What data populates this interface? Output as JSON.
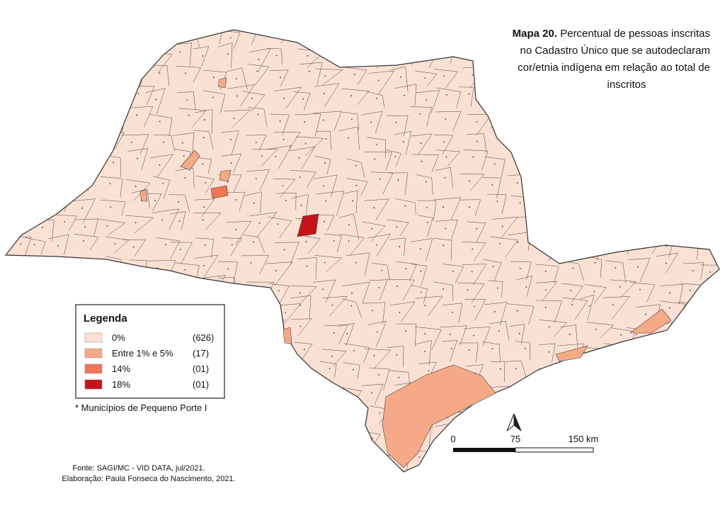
{
  "title": {
    "label": "Mapa 20.",
    "lines": [
      "Percentual de pessoas inscritas",
      "no Cadastro Único que se autodeclaram",
      "cor/etnia indígena em relação ao total de",
      "inscritos"
    ]
  },
  "legend": {
    "title": "Legenda",
    "items": [
      {
        "label": "0%",
        "count": "(626)",
        "color": "#fbe1d4"
      },
      {
        "label": "Entre 1% e 5%",
        "count": "(17)",
        "color": "#f6a987"
      },
      {
        "label": "14%",
        "count": "(01)",
        "color": "#ef7755"
      },
      {
        "label": "18%",
        "count": "(01)",
        "color": "#c4141a"
      }
    ]
  },
  "note": "* Municípios de Pequeno Porte I",
  "scale": {
    "labels": [
      "0",
      "75",
      "150 km"
    ]
  },
  "source": [
    "Fonte: SAGI/MC - VID DATA, jul/2021.",
    "Elaboração: Paula Fonseca do Nascimento, 2021."
  ]
}
